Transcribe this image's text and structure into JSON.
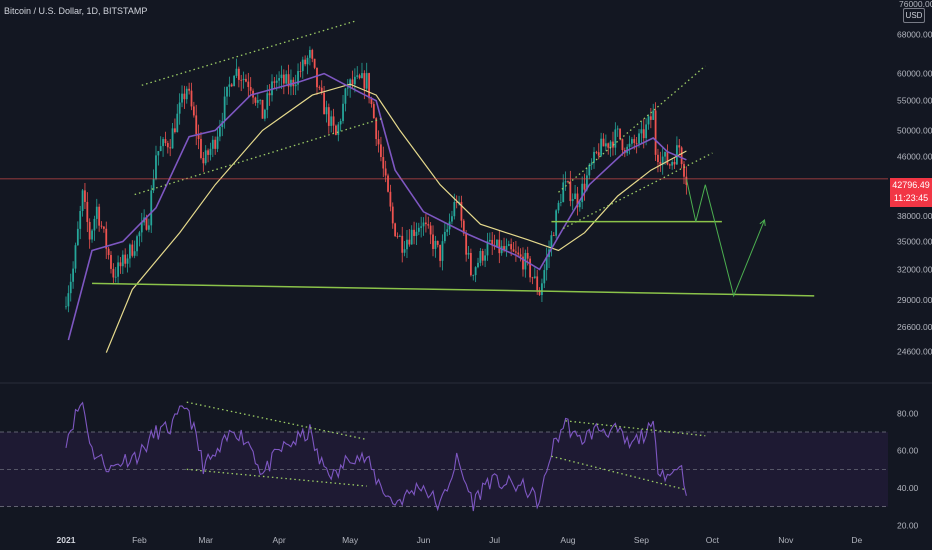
{
  "header": {
    "title": "Bitcoin / U.S. Dollar, 1D, BITSTAMP",
    "currency": "USD",
    "last_price": "42796.49",
    "countdown": "11:23:45"
  },
  "colors": {
    "background": "#131722",
    "up": "#26a69a",
    "down": "#ef5350",
    "ema_fast": "#7e57c2",
    "sma_slow": "#e5d98c",
    "channel_lines": "#9ccc65",
    "support_lines": "#8bc34a",
    "projection": "#4caf50",
    "price_line": "#ef5350",
    "rsi_line": "#7e57c2",
    "rsi_band": "#1e1a33"
  },
  "chart_data": [
    {
      "type": "candlestick",
      "title": "Bitcoin / U.S. Dollar, 1D, BITSTAMP",
      "xlabel": "",
      "ylabel": "",
      "scale": "log",
      "ylim": [
        22800,
        76000
      ],
      "ytick_labels": [
        "68000.00",
        "60000.00",
        "55000.00",
        "50000.00",
        "46000.00",
        "42796.49",
        "38000.00",
        "35000.00",
        "32000.00",
        "29000.00",
        "26600.00",
        "24600.00"
      ],
      "xtick_labels": [
        "2021",
        "Feb",
        "Mar",
        "Apr",
        "May",
        "Jun",
        "Jul",
        "Aug",
        "Sep",
        "Oct",
        "Nov",
        "De"
      ],
      "last_price": 42796.49,
      "close_path": [
        [
          "2021-01-01",
          29300
        ],
        [
          "2021-01-04",
          32000
        ],
        [
          "2021-01-08",
          40500
        ],
        [
          "2021-01-11",
          35500
        ],
        [
          "2021-01-14",
          39000
        ],
        [
          "2021-01-21",
          31500
        ],
        [
          "2021-01-24",
          32300
        ],
        [
          "2021-01-29",
          34300
        ],
        [
          "2021-02-05",
          38000
        ],
        [
          "2021-02-08",
          46500
        ],
        [
          "2021-02-14",
          48500
        ],
        [
          "2021-02-21",
          57500
        ],
        [
          "2021-02-28",
          45000
        ],
        [
          "2021-03-05",
          48500
        ],
        [
          "2021-03-13",
          61000
        ],
        [
          "2021-03-20",
          58000
        ],
        [
          "2021-03-25",
          52500
        ],
        [
          "2021-03-30",
          58800
        ],
        [
          "2021-04-06",
          58000
        ],
        [
          "2021-04-14",
          63500
        ],
        [
          "2021-04-18",
          56000
        ],
        [
          "2021-04-25",
          49000
        ],
        [
          "2021-04-30",
          57700
        ],
        [
          "2021-05-08",
          58800
        ],
        [
          "2021-05-12",
          50000
        ],
        [
          "2021-05-19",
          37000
        ],
        [
          "2021-05-23",
          34800
        ],
        [
          "2021-05-31",
          37300
        ],
        [
          "2021-06-08",
          33500
        ],
        [
          "2021-06-15",
          40300
        ],
        [
          "2021-06-21",
          31700
        ],
        [
          "2021-06-28",
          34500
        ],
        [
          "2021-07-07",
          33800
        ],
        [
          "2021-07-14",
          32800
        ],
        [
          "2021-07-20",
          29800
        ],
        [
          "2021-07-25",
          35400
        ],
        [
          "2021-07-30",
          42000
        ],
        [
          "2021-08-05",
          40000
        ],
        [
          "2021-08-14",
          47000
        ],
        [
          "2021-08-22",
          49300
        ],
        [
          "2021-08-26",
          47000
        ],
        [
          "2021-09-01",
          48800
        ],
        [
          "2021-09-06",
          52700
        ],
        [
          "2021-09-07",
          46800
        ],
        [
          "2021-09-13",
          44900
        ],
        [
          "2021-09-17",
          47500
        ],
        [
          "2021-09-20",
          42796
        ]
      ],
      "ema_fast_path": [
        [
          "2021-01-02",
          25500
        ],
        [
          "2021-01-12",
          34000
        ],
        [
          "2021-01-25",
          35000
        ],
        [
          "2021-02-08",
          39000
        ],
        [
          "2021-02-22",
          49000
        ],
        [
          "2021-03-05",
          50000
        ],
        [
          "2021-03-20",
          56000
        ],
        [
          "2021-04-10",
          58500
        ],
        [
          "2021-04-20",
          60000
        ],
        [
          "2021-05-05",
          56500
        ],
        [
          "2021-05-12",
          55000
        ],
        [
          "2021-05-20",
          44000
        ],
        [
          "2021-06-01",
          38500
        ],
        [
          "2021-06-20",
          35800
        ],
        [
          "2021-07-10",
          33500
        ],
        [
          "2021-07-20",
          32000
        ],
        [
          "2021-07-30",
          36500
        ],
        [
          "2021-08-10",
          42000
        ],
        [
          "2021-08-25",
          46700
        ],
        [
          "2021-09-06",
          48800
        ],
        [
          "2021-09-12",
          46700
        ],
        [
          "2021-09-20",
          45500
        ]
      ],
      "sma_slow_path": [
        [
          "2021-01-18",
          24500
        ],
        [
          "2021-01-29",
          30000
        ],
        [
          "2021-02-18",
          36000
        ],
        [
          "2021-03-05",
          42000
        ],
        [
          "2021-03-25",
          50000
        ],
        [
          "2021-04-15",
          56000
        ],
        [
          "2021-05-01",
          58000
        ],
        [
          "2021-05-12",
          56000
        ],
        [
          "2021-05-22",
          50000
        ],
        [
          "2021-06-08",
          42000
        ],
        [
          "2021-06-25",
          37000
        ],
        [
          "2021-07-15",
          35200
        ],
        [
          "2021-07-28",
          34000
        ],
        [
          "2021-08-08",
          36000
        ],
        [
          "2021-08-22",
          40500
        ],
        [
          "2021-09-05",
          44000
        ],
        [
          "2021-09-20",
          46800
        ]
      ],
      "trend_lines": [
        {
          "style": "dotted",
          "from": [
            "2021-02-02",
            57800
          ],
          "to": [
            "2021-05-03",
            71000
          ]
        },
        {
          "style": "dotted",
          "from": [
            "2021-01-30",
            40700
          ],
          "to": [
            "2021-05-15",
            52000
          ]
        },
        {
          "style": "dotted",
          "from": [
            "2021-07-28",
            41000
          ],
          "to": [
            "2021-09-28",
            61500
          ]
        },
        {
          "style": "dotted",
          "from": [
            "2021-07-30",
            36500
          ],
          "to": [
            "2021-10-01",
            46500
          ]
        },
        {
          "style": "solid",
          "from": [
            "2021-01-12",
            30600
          ],
          "to": [
            "2021-11-13",
            29400
          ]
        },
        {
          "style": "solid",
          "from": [
            "2021-07-25",
            37300
          ],
          "to": [
            "2021-10-05",
            37300
          ]
        }
      ],
      "projection_path": [
        [
          "2021-09-20",
          42796
        ],
        [
          "2021-09-24",
          37300
        ],
        [
          "2021-09-28",
          42000
        ],
        [
          "2021-10-02",
          37300
        ],
        [
          "2021-10-10",
          29400
        ],
        [
          "2021-10-23",
          37500
        ]
      ]
    },
    {
      "type": "line",
      "title": "",
      "xlabel": "",
      "ylabel": "",
      "ylim": [
        18,
        92
      ],
      "ytick_labels": [
        "80.00",
        "60.00",
        "40.00",
        "20.00"
      ],
      "band": [
        30,
        70
      ],
      "midline": 50,
      "rsi_path": [
        [
          "2021-01-01",
          66
        ],
        [
          "2021-01-06",
          82
        ],
        [
          "2021-01-08",
          86
        ],
        [
          "2021-01-12",
          60
        ],
        [
          "2021-01-20",
          50
        ],
        [
          "2021-01-25",
          55
        ],
        [
          "2021-02-01",
          58
        ],
        [
          "2021-02-08",
          70
        ],
        [
          "2021-02-14",
          72
        ],
        [
          "2021-02-21",
          85
        ],
        [
          "2021-02-28",
          52
        ],
        [
          "2021-03-06",
          58
        ],
        [
          "2021-03-13",
          72
        ],
        [
          "2021-03-20",
          63
        ],
        [
          "2021-03-25",
          47
        ],
        [
          "2021-04-01",
          60
        ],
        [
          "2021-04-14",
          70
        ],
        [
          "2021-04-18",
          54
        ],
        [
          "2021-04-25",
          46
        ],
        [
          "2021-05-01",
          58
        ],
        [
          "2021-05-08",
          55
        ],
        [
          "2021-05-12",
          45
        ],
        [
          "2021-05-19",
          32
        ],
        [
          "2021-05-24",
          35
        ],
        [
          "2021-05-31",
          42
        ],
        [
          "2021-06-08",
          30
        ],
        [
          "2021-06-15",
          55
        ],
        [
          "2021-06-22",
          32
        ],
        [
          "2021-06-28",
          44
        ],
        [
          "2021-07-07",
          42
        ],
        [
          "2021-07-14",
          40
        ],
        [
          "2021-07-20",
          32
        ],
        [
          "2021-07-25",
          60
        ],
        [
          "2021-07-31",
          76
        ],
        [
          "2021-08-05",
          65
        ],
        [
          "2021-08-14",
          72
        ],
        [
          "2021-08-22",
          70
        ],
        [
          "2021-08-27",
          62
        ],
        [
          "2021-09-01",
          68
        ],
        [
          "2021-09-06",
          72
        ],
        [
          "2021-09-08",
          52
        ],
        [
          "2021-09-13",
          46
        ],
        [
          "2021-09-17",
          54
        ],
        [
          "2021-09-20",
          40
        ]
      ],
      "trend_lines": [
        {
          "style": "dotted",
          "from": [
            "2021-02-21",
            86
          ],
          "to": [
            "2021-05-08",
            66
          ]
        },
        {
          "style": "dotted",
          "from": [
            "2021-02-21",
            50
          ],
          "to": [
            "2021-05-08",
            41
          ]
        },
        {
          "style": "dotted",
          "from": [
            "2021-07-31",
            76
          ],
          "to": [
            "2021-09-28",
            68
          ]
        },
        {
          "style": "dotted",
          "from": [
            "2021-07-25",
            57
          ],
          "to": [
            "2021-09-20",
            39
          ]
        }
      ]
    }
  ]
}
